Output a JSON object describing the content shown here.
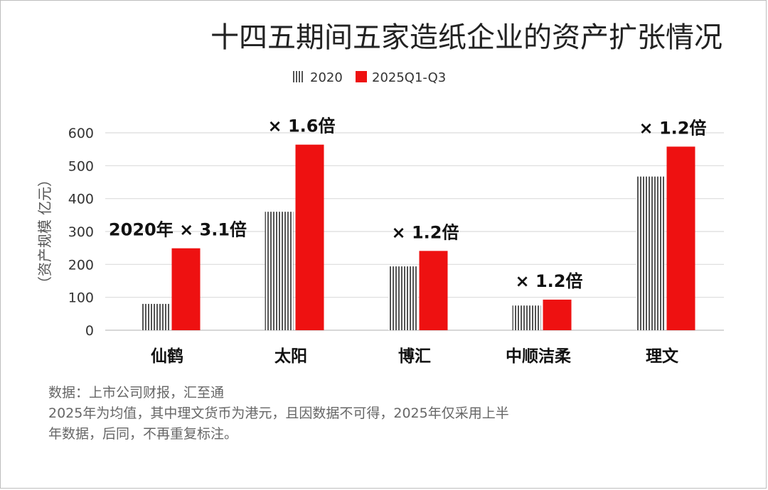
{
  "chart_data": {
    "type": "bar",
    "title": "十四五期间五家造纸企业的资产扩张情况",
    "ylabel": "（资产规模 亿元）",
    "xlabel": "",
    "ylim": [
      0,
      600
    ],
    "yticks": [
      0,
      100,
      200,
      300,
      400,
      500,
      600
    ],
    "grid": true,
    "legend_position": "top-center",
    "categories": [
      "仙鹤",
      "太阳",
      "博汇",
      "中顺洁柔",
      "理文"
    ],
    "series": [
      {
        "name": "2020",
        "values": [
          80,
          360,
          194,
          75,
          467
        ],
        "pattern": "vertical-stripes",
        "color": "#555555"
      },
      {
        "name": "2025Q1-Q3",
        "values": [
          249,
          564,
          241,
          93,
          558
        ],
        "color": "#ee1111"
      }
    ],
    "annotations": [
      "2020年 × 3.1倍",
      "× 1.6倍",
      "× 1.2倍",
      "× 1.2倍",
      "× 1.2倍"
    ]
  },
  "notes": [
    "数据：上市公司财报，汇至通",
    "2025年为均值，其中理文货币为港元，且因数据不可得，2025年仅采用上半",
    "年数据，后同，不再重复标注。"
  ]
}
